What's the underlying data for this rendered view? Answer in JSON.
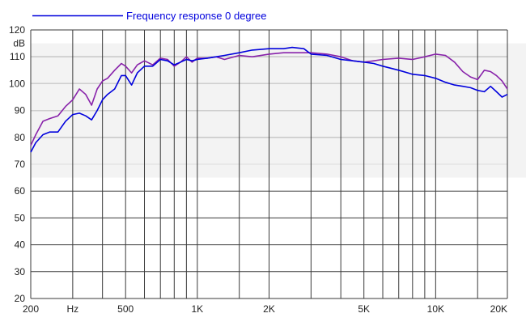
{
  "chart_data": {
    "type": "line",
    "title": "",
    "xlabel": "",
    "ylabel": "dB",
    "x_scale": "log",
    "xlim": [
      200,
      20000
    ],
    "ylim": [
      20,
      120
    ],
    "grid": true,
    "legend_position": "top-left",
    "x_tick_labels": [
      {
        "value": 200,
        "label": "200"
      },
      {
        "value": 300,
        "label": "Hz"
      },
      {
        "value": 500,
        "label": "500"
      },
      {
        "value": 1000,
        "label": "1K"
      },
      {
        "value": 2000,
        "label": "2K"
      },
      {
        "value": 5000,
        "label": "5K"
      },
      {
        "value": 10000,
        "label": "10K"
      },
      {
        "value": 20000,
        "label": "20K"
      }
    ],
    "x_gridlines": [
      300,
      400,
      500,
      600,
      700,
      800,
      900,
      1000,
      1500,
      2000,
      3000,
      4000,
      5000,
      6000,
      7000,
      8000,
      9000,
      10000,
      15000,
      20000
    ],
    "y_ticks": [
      20,
      30,
      40,
      50,
      60,
      70,
      80,
      90,
      100,
      110,
      120
    ],
    "highlight_band": [
      65,
      115
    ],
    "series": [
      {
        "name": "Frequency response 0 degree",
        "color": "#0000dd",
        "x": [
          200,
          210,
          225,
          240,
          260,
          280,
          300,
          320,
          340,
          360,
          380,
          400,
          420,
          450,
          480,
          500,
          530,
          560,
          600,
          650,
          700,
          750,
          800,
          850,
          900,
          950,
          1000,
          1100,
          1200,
          1300,
          1500,
          1700,
          2000,
          2300,
          2500,
          2800,
          3000,
          3500,
          4000,
          4500,
          5000,
          5500,
          6000,
          7000,
          8000,
          9000,
          10000,
          11000,
          12000,
          13000,
          14000,
          15000,
          16000,
          17000,
          18000,
          19000,
          20000
        ],
        "values": [
          74.5,
          78,
          81,
          82,
          82,
          86,
          88.5,
          89,
          88,
          86.5,
          90,
          94,
          96,
          98,
          103,
          103,
          99.5,
          104,
          106.5,
          106.5,
          109,
          108.5,
          107,
          108,
          109,
          108.5,
          109,
          109.5,
          110,
          110.5,
          111.5,
          112.5,
          113,
          113,
          113.5,
          113,
          111,
          110.5,
          109,
          108.5,
          108,
          107.5,
          106.5,
          105,
          103.5,
          103,
          102,
          100.5,
          99.5,
          99,
          98.5,
          97.5,
          97,
          99,
          97,
          95,
          96
        ]
      },
      {
        "name": "",
        "color": "#8822aa",
        "x": [
          200,
          210,
          225,
          240,
          260,
          280,
          300,
          320,
          340,
          360,
          380,
          400,
          420,
          450,
          480,
          500,
          530,
          560,
          600,
          650,
          700,
          750,
          800,
          850,
          900,
          950,
          1000,
          1100,
          1200,
          1300,
          1500,
          1700,
          2000,
          2300,
          2500,
          2800,
          3000,
          3500,
          4000,
          4500,
          5000,
          5500,
          6000,
          7000,
          8000,
          9000,
          10000,
          11000,
          12000,
          13000,
          14000,
          15000,
          16000,
          17000,
          18000,
          19000,
          20000
        ],
        "values": [
          77,
          81,
          86,
          87,
          88,
          91.5,
          94,
          98,
          96,
          92,
          98,
          101,
          102,
          105,
          107.5,
          106.5,
          104,
          107,
          108.5,
          107,
          109.5,
          109,
          106.5,
          108,
          110,
          108,
          109.5,
          109.5,
          110,
          109,
          110.5,
          110,
          111,
          111.5,
          111.5,
          111.5,
          111.5,
          111,
          110,
          108.5,
          108,
          108.5,
          109,
          109.5,
          109,
          110,
          111,
          110.5,
          108,
          104.5,
          102.5,
          101.5,
          105,
          104.5,
          103,
          101,
          98
        ]
      }
    ]
  }
}
